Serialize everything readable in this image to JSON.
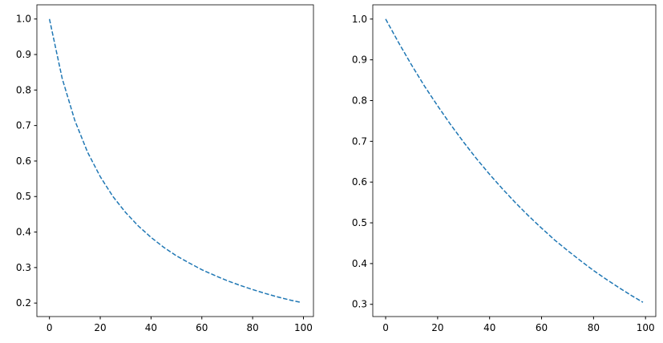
{
  "chart_data": [
    {
      "type": "line",
      "x": [
        0,
        5,
        10,
        15,
        20,
        25,
        30,
        35,
        40,
        45,
        50,
        55,
        60,
        65,
        70,
        75,
        80,
        85,
        90,
        95,
        99
      ],
      "series": [
        {
          "color": "#1f77b4",
          "values": [
            1,
            0.833,
            0.714,
            0.625,
            0.556,
            0.5,
            0.455,
            0.417,
            0.385,
            0.357,
            0.333,
            0.313,
            0.294,
            0.278,
            0.263,
            0.25,
            0.238,
            0.227,
            0.217,
            0.208,
            0.202
          ]
        }
      ],
      "xlim": [
        -4.95,
        103.95
      ],
      "ylim": [
        0.162,
        1.04
      ],
      "xticks": [
        0,
        20,
        40,
        60,
        80,
        100
      ],
      "yticks": [
        0.2,
        0.3,
        0.4,
        0.5,
        0.6,
        0.7,
        0.8,
        0.9,
        {
          "value": 1,
          "label": "1.0"
        }
      ],
      "line_style": "dashed"
    },
    {
      "type": "line",
      "x": [
        0,
        5,
        10,
        15,
        20,
        25,
        30,
        35,
        40,
        45,
        50,
        55,
        60,
        65,
        70,
        75,
        80,
        85,
        90,
        95,
        99
      ],
      "series": [
        {
          "color": "#1f77b4",
          "values": [
            1,
            0.942,
            0.887,
            0.835,
            0.787,
            0.741,
            0.698,
            0.657,
            0.619,
            0.583,
            0.549,
            0.517,
            0.487,
            0.458,
            0.432,
            0.407,
            0.383,
            0.361,
            0.34,
            0.32,
            0.305
          ]
        }
      ],
      "xlim": [
        -4.95,
        103.95
      ],
      "ylim": [
        0.27,
        1.035
      ],
      "xticks": [
        0,
        20,
        40,
        60,
        80,
        100
      ],
      "yticks": [
        0.3,
        0.4,
        0.5,
        0.6,
        0.7,
        0.8,
        0.9,
        {
          "value": 1,
          "label": "1.0"
        }
      ],
      "line_style": "dashed"
    }
  ]
}
